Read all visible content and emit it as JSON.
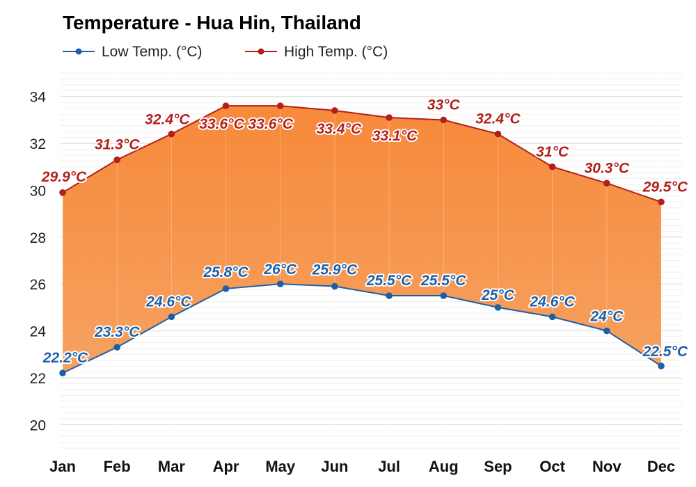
{
  "chart_data": {
    "type": "line",
    "title": "Temperature - Hua Hin, Thailand",
    "categories": [
      "Jan",
      "Feb",
      "Mar",
      "Apr",
      "May",
      "Jun",
      "Jul",
      "Aug",
      "Sep",
      "Oct",
      "Nov",
      "Dec"
    ],
    "series": [
      {
        "name": "Low Temp. (°C)",
        "color": "#1f5fa8",
        "values": [
          22.2,
          23.3,
          24.6,
          25.8,
          26,
          25.9,
          25.5,
          25.5,
          25,
          24.6,
          24,
          22.5
        ],
        "labels": [
          "22.2°C",
          "23.3°C",
          "24.6°C",
          "25.8°C",
          "26°C",
          "25.9°C",
          "25.5°C",
          "25.5°C",
          "25°C",
          "24.6°C",
          "24°C",
          "22.5°C"
        ]
      },
      {
        "name": "High Temp. (°C)",
        "color": "#b3201c",
        "values": [
          29.9,
          31.3,
          32.4,
          33.6,
          33.6,
          33.4,
          33.1,
          33,
          32.4,
          31,
          30.3,
          29.5
        ],
        "labels": [
          "29.9°C",
          "31.3°C",
          "32.4°C",
          "33.6°C",
          "33.6°C",
          "33.4°C",
          "33.1°C",
          "33°C",
          "32.4°C",
          "31°C",
          "30.3°C",
          "29.5°C"
        ]
      }
    ],
    "yticks": [
      "20",
      "22",
      "24",
      "26",
      "28",
      "30",
      "32",
      "34"
    ],
    "ylim": [
      19,
      35
    ],
    "xlabel": "",
    "ylabel": "",
    "grid": true,
    "legend_position": "top-left",
    "fill_between": {
      "top_color": "#f7893a",
      "bottom_color": "#f5a261"
    }
  }
}
